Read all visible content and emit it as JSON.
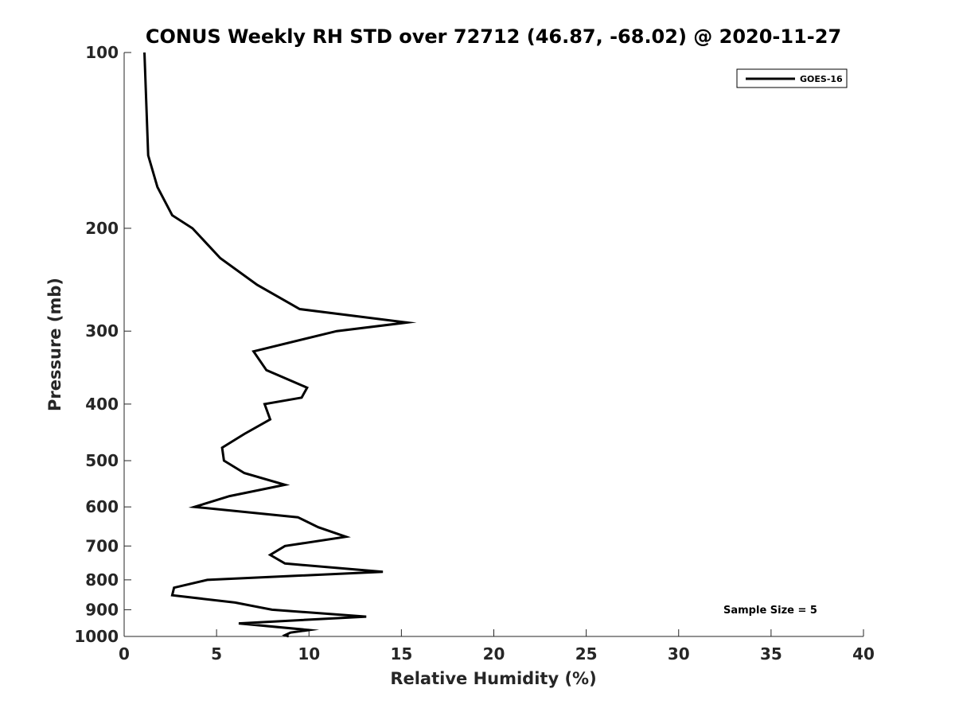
{
  "chart_data": {
    "type": "line",
    "title": "CONUS Weekly RH STD over 72712 (46.87, -68.02) @ 2020-11-27",
    "xlabel": "Relative Humidity (%)",
    "ylabel": "Pressure (mb)",
    "xlim": [
      0,
      40
    ],
    "ylim": [
      100,
      1000
    ],
    "yscale": "log",
    "y_reversed": true,
    "grid": false,
    "legend_position": "top-right",
    "x_ticks": [
      "0",
      "5",
      "10",
      "15",
      "20",
      "25",
      "30",
      "35",
      "40"
    ],
    "y_ticks": [
      "100",
      "200",
      "300",
      "400",
      "500",
      "600",
      "700",
      "800",
      "900",
      "1000"
    ],
    "series": [
      {
        "name": "GOES-16",
        "color": "#000000",
        "points": [
          [
            1.1,
            100
          ],
          [
            1.3,
            150
          ],
          [
            1.8,
            170
          ],
          [
            2.6,
            190
          ],
          [
            3.7,
            200
          ],
          [
            5.2,
            225
          ],
          [
            7.2,
            250
          ],
          [
            9.5,
            275
          ],
          [
            15.3,
            290
          ],
          [
            11.5,
            300
          ],
          [
            7.0,
            325
          ],
          [
            7.7,
            350
          ],
          [
            9.9,
            375
          ],
          [
            9.6,
            390
          ],
          [
            7.6,
            400
          ],
          [
            7.9,
            425
          ],
          [
            6.5,
            450
          ],
          [
            5.3,
            475
          ],
          [
            5.4,
            500
          ],
          [
            6.5,
            525
          ],
          [
            8.7,
            550
          ],
          [
            5.7,
            575
          ],
          [
            3.8,
            600
          ],
          [
            9.4,
            625
          ],
          [
            10.5,
            650
          ],
          [
            12.0,
            675
          ],
          [
            8.7,
            700
          ],
          [
            7.9,
            725
          ],
          [
            8.7,
            750
          ],
          [
            14.0,
            775
          ],
          [
            4.5,
            800
          ],
          [
            2.7,
            825
          ],
          [
            2.6,
            850
          ],
          [
            6.0,
            875
          ],
          [
            8.0,
            900
          ],
          [
            13.1,
            925
          ],
          [
            6.2,
            950
          ],
          [
            10.0,
            975
          ],
          [
            9.0,
            985
          ],
          [
            8.7,
            995
          ],
          [
            8.9,
            1000
          ]
        ]
      }
    ],
    "annotation": "Sample Size = 5"
  }
}
